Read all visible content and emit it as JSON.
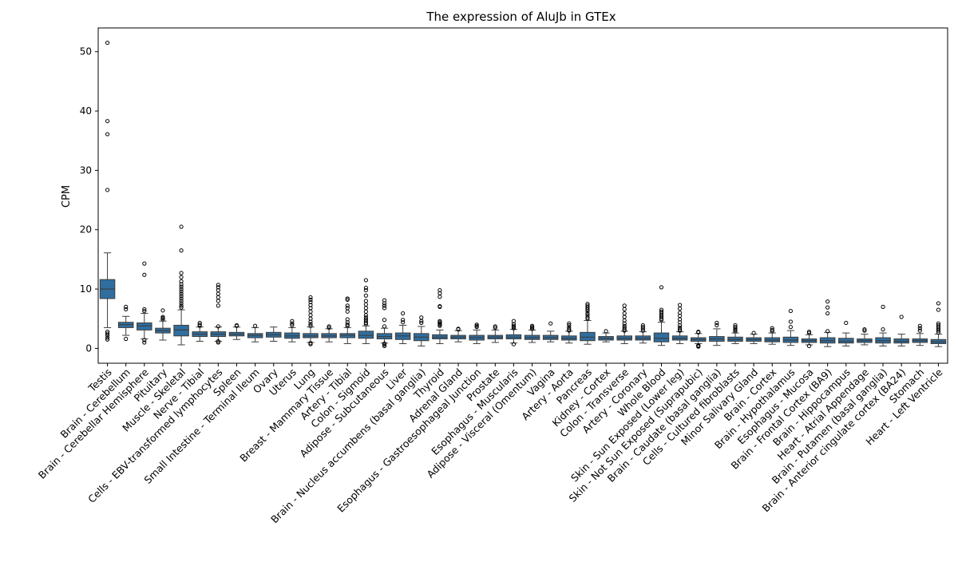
{
  "chart_data": {
    "type": "box",
    "title": "The expression of AluJb in GTEx",
    "xlabel": "",
    "ylabel": "CPM",
    "ylim": [
      -2.5,
      54
    ],
    "yticks": [
      0,
      10,
      20,
      30,
      40,
      50
    ],
    "grid": false,
    "box_color": "#2f6e9f",
    "categories": [
      "Testis",
      "Brain - Cerebellum",
      "Brain - Cerebellar Hemisphere",
      "Pituitary",
      "Muscle - Skeletal",
      "Nerve - Tibial",
      "Cells - EBV-transformed lymphocytes",
      "Spleen",
      "Small Intestine - Terminal Ileum",
      "Ovary",
      "Uterus",
      "Lung",
      "Breast - Mammary Tissue",
      "Artery - Tibial",
      "Colon - Sigmoid",
      "Adipose - Subcutaneous",
      "Liver",
      "Brain - Nucleus accumbens (basal ganglia)",
      "Thyroid",
      "Adrenal Gland",
      "Esophagus - Gastroesophageal Junction",
      "Prostate",
      "Esophagus - Muscularis",
      "Adipose - Visceral (Omentum)",
      "Vagina",
      "Artery - Aorta",
      "Pancreas",
      "Kidney - Cortex",
      "Colon - Transverse",
      "Artery - Coronary",
      "Whole Blood",
      "Skin - Sun Exposed (Lower leg)",
      "Skin - Not Sun Exposed (Suprapubic)",
      "Brain - Caudate (basal ganglia)",
      "Cells - Cultured fibroblasts",
      "Minor Salivary Gland",
      "Brain - Cortex",
      "Brain - Hypothalamus",
      "Esophagus - Mucosa",
      "Brain - Frontal Cortex (BA9)",
      "Brain - Hippocampus",
      "Heart - Atrial Appendage",
      "Brain - Putamen (basal ganglia)",
      "Brain - Anterior cingulate cortex (BA24)",
      "Stomach",
      "Heart - Left Ventricle"
    ],
    "boxes": [
      {
        "whislo": 3.5,
        "q1": 8.4,
        "med": 10.0,
        "q3": 11.6,
        "whishi": 16.1,
        "fliers": [
          51.5,
          38.3,
          36.1,
          26.7,
          2.8,
          2.5,
          2.2,
          1.8,
          1.5
        ]
      },
      {
        "whislo": 2.2,
        "q1": 3.5,
        "med": 4.0,
        "q3": 4.4,
        "whishi": 5.4,
        "fliers": [
          7.0,
          6.6,
          1.6
        ]
      },
      {
        "whislo": 1.6,
        "q1": 3.1,
        "med": 3.8,
        "q3": 4.3,
        "whishi": 5.9,
        "fliers": [
          14.3,
          12.4,
          6.6,
          6.3,
          1.4,
          1.0
        ]
      },
      {
        "whislo": 1.4,
        "q1": 2.6,
        "med": 3.0,
        "q3": 3.4,
        "whishi": 4.6,
        "fliers": [
          6.4,
          5.3,
          5.1,
          4.9
        ]
      },
      {
        "whislo": 0.6,
        "q1": 2.1,
        "med": 3.1,
        "q3": 3.9,
        "whishi": 6.5,
        "fliers": [
          20.5,
          16.5,
          12.7,
          12.0,
          11.3,
          10.8,
          10.4,
          10.0,
          9.6,
          9.2,
          8.8,
          8.4,
          8.0,
          7.6,
          7.2,
          6.9
        ]
      },
      {
        "whislo": 1.2,
        "q1": 2.0,
        "med": 2.4,
        "q3": 2.8,
        "whishi": 3.6,
        "fliers": [
          4.3,
          4.0,
          3.8
        ]
      },
      {
        "whislo": 1.2,
        "q1": 2.0,
        "med": 2.4,
        "q3": 2.8,
        "whishi": 3.6,
        "fliers": [
          10.7,
          10.3,
          9.8,
          9.2,
          8.6,
          8.0,
          7.2,
          3.7,
          1.2,
          1.0
        ]
      },
      {
        "whislo": 1.5,
        "q1": 2.1,
        "med": 2.4,
        "q3": 2.7,
        "whishi": 3.6,
        "fliers": [
          3.9,
          3.8
        ]
      },
      {
        "whislo": 1.1,
        "q1": 1.8,
        "med": 2.2,
        "q3": 2.5,
        "whishi": 3.5,
        "fliers": [
          3.8
        ]
      },
      {
        "whislo": 1.2,
        "q1": 1.9,
        "med": 2.3,
        "q3": 2.7,
        "whishi": 3.6,
        "fliers": []
      },
      {
        "whislo": 1.1,
        "q1": 1.7,
        "med": 2.1,
        "q3": 2.6,
        "whishi": 3.5,
        "fliers": [
          4.6,
          4.2,
          3.9
        ]
      },
      {
        "whislo": 1.0,
        "q1": 1.8,
        "med": 2.1,
        "q3": 2.5,
        "whishi": 3.6,
        "fliers": [
          8.6,
          8.2,
          7.8,
          7.3,
          6.8,
          6.2,
          5.6,
          5.0,
          4.5,
          4.1,
          3.8,
          0.9,
          0.7
        ]
      },
      {
        "whislo": 1.1,
        "q1": 1.8,
        "med": 2.1,
        "q3": 2.5,
        "whishi": 3.3,
        "fliers": [
          3.7,
          3.5
        ]
      },
      {
        "whislo": 0.8,
        "q1": 1.8,
        "med": 2.2,
        "q3": 2.5,
        "whishi": 3.5,
        "fliers": [
          8.4,
          8.2,
          7.2,
          6.8,
          6.2,
          4.9,
          4.4,
          4.0,
          3.8
        ]
      },
      {
        "whislo": 0.8,
        "q1": 1.7,
        "med": 2.2,
        "q3": 2.9,
        "whishi": 3.8,
        "fliers": [
          11.5,
          10.2,
          9.8,
          8.9,
          8.0,
          7.4,
          6.8,
          6.2,
          5.6,
          5.2,
          4.9,
          4.6,
          4.3,
          4.1
        ]
      },
      {
        "whislo": 0.9,
        "q1": 1.6,
        "med": 2.0,
        "q3": 2.5,
        "whishi": 3.4,
        "fliers": [
          8.1,
          7.6,
          7.2,
          6.8,
          4.8,
          3.7,
          0.8,
          0.6,
          0.4
        ]
      },
      {
        "whislo": 0.8,
        "q1": 1.5,
        "med": 2.1,
        "q3": 2.6,
        "whishi": 3.9,
        "fliers": [
          5.9,
          4.8,
          4.4
        ]
      },
      {
        "whislo": 0.4,
        "q1": 1.3,
        "med": 1.9,
        "q3": 2.5,
        "whishi": 3.7,
        "fliers": [
          5.2,
          4.6,
          4.3
        ]
      },
      {
        "whislo": 0.8,
        "q1": 1.6,
        "med": 1.9,
        "q3": 2.3,
        "whishi": 3.1,
        "fliers": [
          9.8,
          9.3,
          8.7,
          7.1,
          7.0,
          4.6,
          4.4,
          4.2,
          4.0,
          3.8
        ]
      },
      {
        "whislo": 1.1,
        "q1": 1.6,
        "med": 1.9,
        "q3": 2.2,
        "whishi": 3.0,
        "fliers": [
          3.3,
          3.2
        ]
      },
      {
        "whislo": 0.8,
        "q1": 1.4,
        "med": 1.8,
        "q3": 2.2,
        "whishi": 3.1,
        "fliers": [
          4.0,
          3.8,
          3.6
        ]
      },
      {
        "whislo": 1.0,
        "q1": 1.6,
        "med": 1.9,
        "q3": 2.2,
        "whishi": 3.1,
        "fliers": [
          3.7,
          3.5
        ]
      },
      {
        "whislo": 0.9,
        "q1": 1.6,
        "med": 1.9,
        "q3": 2.3,
        "whishi": 3.2,
        "fliers": [
          4.6,
          4.1,
          3.8,
          3.6,
          3.4,
          0.7
        ]
      },
      {
        "whislo": 1.0,
        "q1": 1.5,
        "med": 1.8,
        "q3": 2.2,
        "whishi": 3.1,
        "fliers": [
          3.8,
          3.6,
          3.4,
          3.3
        ]
      },
      {
        "whislo": 1.1,
        "q1": 1.5,
        "med": 1.8,
        "q3": 2.2,
        "whishi": 2.9,
        "fliers": [
          4.2
        ]
      },
      {
        "whislo": 0.9,
        "q1": 1.4,
        "med": 1.7,
        "q3": 2.1,
        "whishi": 2.9,
        "fliers": [
          4.2,
          3.9,
          3.5,
          3.2,
          3.0
        ]
      },
      {
        "whislo": 0.7,
        "q1": 1.3,
        "med": 1.9,
        "q3": 2.7,
        "whishi": 4.7,
        "fliers": [
          7.5,
          7.2,
          6.9,
          6.6,
          6.3,
          5.9,
          5.6,
          5.2,
          5.0
        ]
      },
      {
        "whislo": 1.1,
        "q1": 1.4,
        "med": 1.7,
        "q3": 2.0,
        "whishi": 2.6,
        "fliers": [
          2.9
        ]
      },
      {
        "whislo": 0.8,
        "q1": 1.4,
        "med": 1.7,
        "q3": 2.1,
        "whishi": 2.9,
        "fliers": [
          7.2,
          6.6,
          5.9,
          5.3,
          4.7,
          4.2,
          3.8,
          3.5,
          3.2,
          3.0
        ]
      },
      {
        "whislo": 0.9,
        "q1": 1.4,
        "med": 1.7,
        "q3": 2.1,
        "whishi": 2.8,
        "fliers": [
          3.9,
          3.6,
          3.3,
          3.0
        ]
      },
      {
        "whislo": 0.5,
        "q1": 1.1,
        "med": 1.7,
        "q3": 2.6,
        "whishi": 4.4,
        "fliers": [
          10.3,
          6.5,
          6.2,
          5.9,
          5.6,
          5.3,
          5.0,
          4.8
        ]
      },
      {
        "whislo": 0.8,
        "q1": 1.4,
        "med": 1.7,
        "q3": 2.1,
        "whishi": 2.8,
        "fliers": [
          7.3,
          6.7,
          6.0,
          5.5,
          4.9,
          4.4,
          3.9,
          3.5,
          3.2,
          3.0
        ]
      },
      {
        "whislo": 0.8,
        "q1": 1.2,
        "med": 1.5,
        "q3": 1.8,
        "whishi": 2.5,
        "fliers": [
          2.8,
          2.7,
          0.5,
          0.4,
          0.3
        ]
      },
      {
        "whislo": 0.5,
        "q1": 1.2,
        "med": 1.6,
        "q3": 2.0,
        "whishi": 3.3,
        "fliers": [
          4.3,
          3.9
        ]
      },
      {
        "whislo": 0.8,
        "q1": 1.2,
        "med": 1.5,
        "q3": 1.9,
        "whishi": 2.6,
        "fliers": [
          3.9,
          3.6,
          3.3,
          3.1,
          2.9
        ]
      },
      {
        "whislo": 0.8,
        "q1": 1.2,
        "med": 1.5,
        "q3": 1.8,
        "whishi": 2.4,
        "fliers": [
          2.6
        ]
      },
      {
        "whislo": 0.7,
        "q1": 1.1,
        "med": 1.4,
        "q3": 1.8,
        "whishi": 2.6,
        "fliers": [
          3.4,
          3.1,
          2.9
        ]
      },
      {
        "whislo": 0.5,
        "q1": 1.0,
        "med": 1.4,
        "q3": 1.9,
        "whishi": 3.0,
        "fliers": [
          6.3,
          4.5,
          3.6
        ]
      },
      {
        "whislo": 0.6,
        "q1": 1.0,
        "med": 1.3,
        "q3": 1.6,
        "whishi": 2.3,
        "fliers": [
          2.8,
          2.6,
          0.4
        ]
      },
      {
        "whislo": 0.3,
        "q1": 0.9,
        "med": 1.3,
        "q3": 1.8,
        "whishi": 2.7,
        "fliers": [
          7.9,
          6.9,
          5.9,
          2.9
        ]
      },
      {
        "whislo": 0.4,
        "q1": 0.9,
        "med": 1.2,
        "q3": 1.7,
        "whishi": 2.6,
        "fliers": [
          4.3
        ]
      },
      {
        "whislo": 0.6,
        "q1": 1.0,
        "med": 1.3,
        "q3": 1.6,
        "whishi": 2.4,
        "fliers": [
          3.2,
          3.0
        ]
      },
      {
        "whislo": 0.4,
        "q1": 0.9,
        "med": 1.3,
        "q3": 1.8,
        "whishi": 2.6,
        "fliers": [
          7.0,
          3.2
        ]
      },
      {
        "whislo": 0.4,
        "q1": 0.9,
        "med": 1.2,
        "q3": 1.6,
        "whishi": 2.4,
        "fliers": [
          5.3
        ]
      },
      {
        "whislo": 0.5,
        "q1": 1.0,
        "med": 1.3,
        "q3": 1.6,
        "whishi": 2.5,
        "fliers": [
          3.8,
          3.4,
          3.0
        ]
      },
      {
        "whislo": 0.3,
        "q1": 0.8,
        "med": 1.1,
        "q3": 1.5,
        "whishi": 2.4,
        "fliers": [
          7.6,
          6.5,
          4.2,
          3.9,
          3.6,
          3.3,
          3.0,
          2.7
        ]
      }
    ]
  }
}
